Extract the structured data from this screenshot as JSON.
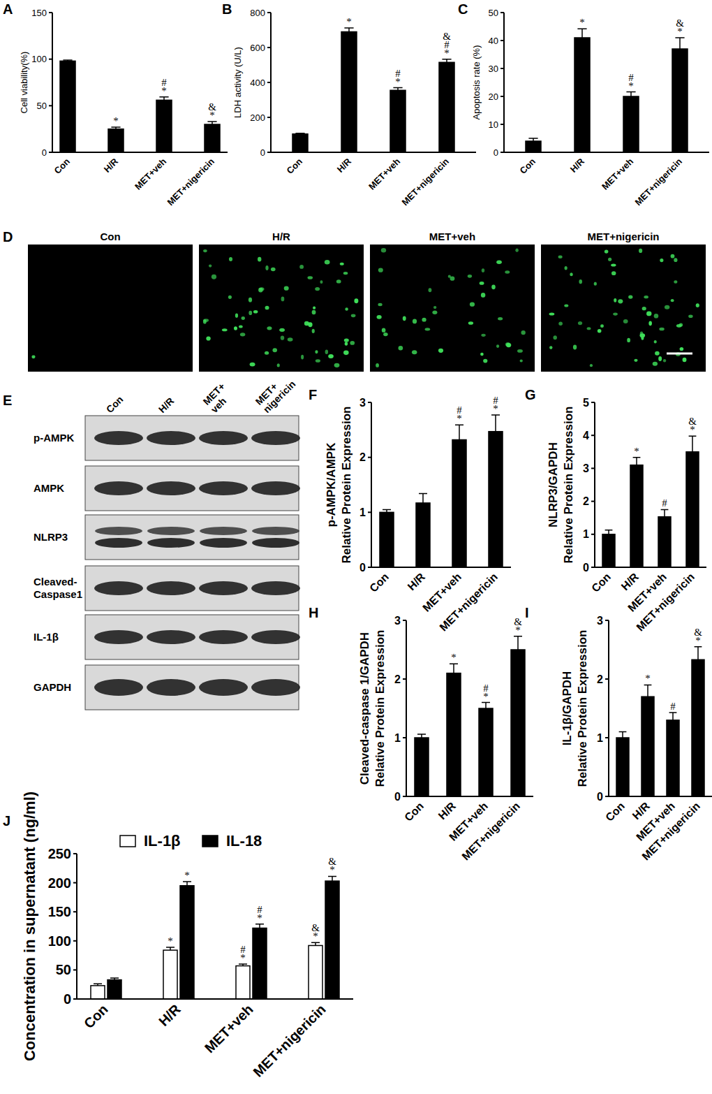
{
  "chart_data": [
    {
      "type": "bar",
      "panel": "A",
      "y_label": "Cell viability(%)",
      "categories": [
        "Con",
        "H/R",
        "MET+veh",
        "MET+nigericin"
      ],
      "values": [
        98,
        25,
        56,
        30
      ],
      "errors": [
        1,
        2,
        3.5,
        3
      ],
      "annotations": [
        null,
        [
          "*"
        ],
        [
          "#",
          "*"
        ],
        [
          "&",
          "*"
        ]
      ],
      "ylim": [
        0,
        150
      ],
      "yticks": [
        0,
        50,
        100,
        150
      ],
      "color": "#000000"
    },
    {
      "type": "bar",
      "panel": "B",
      "y_label": "LDH activity (U/L)",
      "categories": [
        "Con",
        "H/R",
        "MET+veh",
        "MET+nigericin"
      ],
      "values": [
        105,
        690,
        355,
        515
      ],
      "errors": [
        4,
        22,
        15,
        18
      ],
      "annotations": [
        null,
        [
          "*"
        ],
        [
          "#",
          "*"
        ],
        [
          "&",
          "#",
          "*"
        ]
      ],
      "ylim": [
        0,
        800
      ],
      "yticks": [
        0,
        200,
        400,
        600,
        800
      ],
      "color": "#000000"
    },
    {
      "type": "bar",
      "panel": "C",
      "y_label": "Apoptosis rate (%)",
      "categories": [
        "Con",
        "H/R",
        "MET+veh",
        "MET+nigericin"
      ],
      "values": [
        4,
        41,
        20,
        37
      ],
      "errors": [
        1,
        3.2,
        1.6,
        4
      ],
      "annotations": [
        null,
        [
          "*"
        ],
        [
          "#",
          "*"
        ],
        [
          "&",
          "*"
        ]
      ],
      "ylim": [
        0,
        50
      ],
      "yticks": [
        0,
        10,
        20,
        30,
        40,
        50
      ],
      "color": "#000000"
    },
    {
      "type": "bar",
      "panel": "F",
      "y_label": [
        "p-AMPK/AMPK",
        "Relative Protein Expression"
      ],
      "categories": [
        "Con",
        "H/R",
        "MET+veh",
        "MET+nigericin"
      ],
      "values": [
        1.0,
        1.17,
        2.32,
        2.47
      ],
      "errors": [
        0.05,
        0.17,
        0.27,
        0.3
      ],
      "annotations": [
        null,
        null,
        [
          "#",
          "*"
        ],
        [
          "#",
          "*"
        ]
      ],
      "ylim": [
        0,
        3
      ],
      "yticks": [
        0,
        1,
        2,
        3
      ],
      "color": "#000000"
    },
    {
      "type": "bar",
      "panel": "G",
      "y_label": [
        "NLRP3/GAPDH",
        "Relative Protein Expression"
      ],
      "categories": [
        "Con",
        "H/R",
        "MET+veh",
        "MET+nigericin"
      ],
      "values": [
        1.0,
        3.1,
        1.53,
        3.5
      ],
      "errors": [
        0.13,
        0.23,
        0.22,
        0.48
      ],
      "annotations": [
        null,
        [
          "*"
        ],
        [
          "#"
        ],
        [
          "&",
          "*"
        ]
      ],
      "ylim": [
        0,
        5
      ],
      "yticks": [
        0,
        1,
        2,
        3,
        4,
        5
      ],
      "color": "#000000"
    },
    {
      "type": "bar",
      "panel": "H",
      "y_label": [
        "Cleaved-caspase 1/GAPDH",
        "Relative Protein Expression"
      ],
      "categories": [
        "Con",
        "H/R",
        "MET+veh",
        "MET+nigericin"
      ],
      "values": [
        1.0,
        2.1,
        1.5,
        2.5
      ],
      "errors": [
        0.06,
        0.16,
        0.1,
        0.23
      ],
      "annotations": [
        null,
        [
          "*"
        ],
        [
          "#",
          "*"
        ],
        [
          "&",
          "*"
        ]
      ],
      "ylim": [
        0,
        3
      ],
      "yticks": [
        0,
        1,
        2,
        3
      ],
      "color": "#000000"
    },
    {
      "type": "bar",
      "panel": "I",
      "y_label": [
        "IL-1β/GAPDH",
        "Relative Protein Expression"
      ],
      "categories": [
        "Con",
        "H/R",
        "MET+veh",
        "MET+nigericin"
      ],
      "values": [
        1.0,
        1.7,
        1.3,
        2.33
      ],
      "errors": [
        0.1,
        0.2,
        0.13,
        0.22
      ],
      "annotations": [
        null,
        [
          "*"
        ],
        [
          "#"
        ],
        [
          "&",
          "*"
        ]
      ],
      "ylim": [
        0,
        3
      ],
      "yticks": [
        0,
        1,
        2,
        3
      ],
      "color": "#000000"
    },
    {
      "type": "bar",
      "panel": "J",
      "y_label": "Concentration in supernatant (ng/ml)",
      "categories": [
        "Con",
        "H/R",
        "MET+veh",
        "MET+nigericin"
      ],
      "series": [
        {
          "name": "IL-1β",
          "color": "#ffffff",
          "values": [
            23,
            84,
            57,
            92
          ],
          "errors": [
            3,
            5,
            3,
            5
          ],
          "annotations": [
            null,
            [
              "*"
            ],
            [
              "#",
              "*"
            ],
            [
              "&",
              "*"
            ]
          ]
        },
        {
          "name": "IL-18",
          "color": "#000000",
          "values": [
            33,
            195,
            122,
            203
          ],
          "errors": [
            3,
            7,
            7,
            8
          ],
          "annotations": [
            null,
            [
              "*"
            ],
            [
              "#",
              "*"
            ],
            [
              "&",
              "*"
            ]
          ]
        }
      ],
      "ylim": [
        0,
        250
      ],
      "yticks": [
        0,
        50,
        100,
        150,
        200,
        250
      ],
      "legend": "top"
    }
  ],
  "image_panel": {
    "panel": "D",
    "labels": [
      "Con",
      "H/R",
      "MET+veh",
      "MET+nigericin"
    ]
  },
  "blot": {
    "panel": "E",
    "lanes": [
      [
        "Con"
      ],
      [
        "H/R"
      ],
      [
        "MET+",
        "veh"
      ],
      [
        "MET+",
        "nigericin"
      ]
    ],
    "rows": [
      [
        "p-AMPK"
      ],
      [
        "AMPK"
      ],
      [
        "NLRP3"
      ],
      [
        "Cleaved-",
        "Caspase1"
      ],
      [
        "IL-1β"
      ],
      [
        "GAPDH"
      ]
    ]
  }
}
